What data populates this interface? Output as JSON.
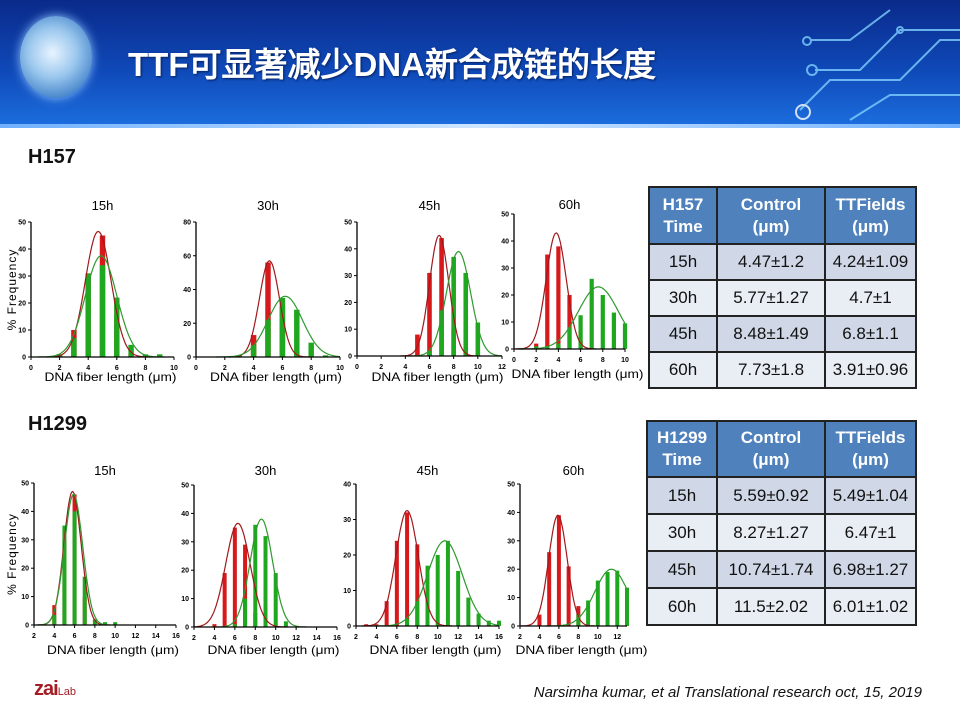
{
  "header": {
    "title": "TTF可显著减少DNA新合成链的长度"
  },
  "sections": [
    {
      "label": "H157",
      "table": {
        "headers": [
          "H157\nTime",
          "Control\n(μm)",
          "TTFields\n(μm)"
        ],
        "rows": [
          [
            "15h",
            "4.47±1.2",
            "4.24±1.09"
          ],
          [
            "30h",
            "5.77±1.27",
            "4.7±1"
          ],
          [
            "45h",
            "8.48±1.49",
            "6.8±1.1"
          ],
          [
            "60h",
            "7.73±1.8",
            "3.91±0.96"
          ]
        ]
      }
    },
    {
      "label": "H1299",
      "table": {
        "headers": [
          "H1299\nTime",
          "Control\n(μm)",
          "TTFields\n(μm)"
        ],
        "rows": [
          [
            "15h",
            "5.59±0.92",
            "5.49±1.04"
          ],
          [
            "30h",
            "8.27±1.27",
            "6.47±1"
          ],
          [
            "45h",
            "10.74±1.74",
            "6.98±1.27"
          ],
          [
            "60h",
            "11.5±2.02",
            "6.01±1.02"
          ]
        ]
      }
    }
  ],
  "colors": {
    "red": "#d7191c",
    "green": "#1fa81f",
    "red_fit": "#a0191c",
    "green_fit": "#2e9a2e",
    "header_blue": "#4f81bd"
  },
  "chart_data": [
    {
      "type": "bar",
      "group": "H157",
      "title": "15h",
      "xlabel": "DNA fiber length (μm)",
      "ylabel": "% Frequency",
      "xlim": [
        0,
        10
      ],
      "ylim": [
        0,
        50
      ],
      "xticks": [
        0,
        2,
        4,
        6,
        8,
        10
      ],
      "yticks": [
        0,
        10,
        20,
        30,
        40,
        50
      ],
      "series": [
        {
          "name": "red",
          "x": [
            2,
            3,
            4,
            5,
            6,
            7
          ],
          "values": [
            0.5,
            10,
            30,
            45,
            15,
            1
          ],
          "fit": {
            "mean": 4.7,
            "sd": 0.9,
            "peak": 46.5
          }
        },
        {
          "name": "green",
          "x": [
            2,
            3,
            4,
            5,
            6,
            7,
            8,
            9
          ],
          "values": [
            1,
            7,
            31,
            34,
            22,
            4.5,
            1,
            1
          ],
          "fit": {
            "mean": 4.9,
            "sd": 1.1,
            "peak": 37.5
          }
        }
      ]
    },
    {
      "type": "bar",
      "group": "H157",
      "title": "30h",
      "xlabel": "DNA fiber length (μm)",
      "ylabel": "",
      "xlim": [
        0,
        10
      ],
      "ylim": [
        0,
        80
      ],
      "xticks": [
        0,
        2,
        4,
        6,
        8,
        10
      ],
      "yticks": [
        0,
        20,
        40,
        60,
        80
      ],
      "series": [
        {
          "name": "red",
          "x": [
            4,
            5,
            6,
            7
          ],
          "values": [
            13,
            56,
            30,
            2
          ],
          "fit": {
            "mean": 5.1,
            "sd": 0.7,
            "peak": 57
          }
        },
        {
          "name": "green",
          "x": [
            3,
            4,
            5,
            6,
            7,
            8,
            9
          ],
          "values": [
            1,
            7,
            22,
            35,
            28,
            8.5,
            1
          ],
          "fit": {
            "mean": 6.2,
            "sd": 1.2,
            "peak": 36
          }
        }
      ]
    },
    {
      "type": "bar",
      "group": "H157",
      "title": "45h",
      "xlabel": "DNA fiber length (μm)",
      "ylabel": "",
      "xlim": [
        0,
        12
      ],
      "ylim": [
        0,
        50
      ],
      "xticks": [
        0,
        2,
        4,
        6,
        8,
        10,
        12
      ],
      "yticks": [
        0,
        10,
        20,
        30,
        40,
        50
      ],
      "series": [
        {
          "name": "red",
          "x": [
            5,
            6,
            7,
            8
          ],
          "values": [
            8,
            31,
            44,
            10
          ],
          "fit": {
            "mean": 6.8,
            "sd": 0.8,
            "peak": 45
          }
        },
        {
          "name": "green",
          "x": [
            6,
            7,
            8,
            9,
            10
          ],
          "values": [
            2,
            17,
            37,
            31,
            12.5
          ],
          "fit": {
            "mean": 8.4,
            "sd": 1.0,
            "peak": 39
          }
        }
      ]
    },
    {
      "type": "bar",
      "group": "H157",
      "title": "60h",
      "xlabel": "DNA fiber length (μm)",
      "ylabel": "",
      "xlim": [
        0,
        10
      ],
      "ylim": [
        0,
        50
      ],
      "xticks": [
        0,
        2,
        4,
        6,
        8,
        10
      ],
      "yticks": [
        0,
        10,
        20,
        30,
        40,
        50
      ],
      "series": [
        {
          "name": "red",
          "x": [
            2,
            3,
            4,
            5,
            6
          ],
          "values": [
            2,
            35,
            38,
            20,
            3
          ],
          "fit": {
            "mean": 3.8,
            "sd": 0.9,
            "peak": 43
          }
        },
        {
          "name": "green",
          "x": [
            2,
            3,
            4,
            5,
            6,
            7,
            8,
            9,
            10
          ],
          "values": [
            1,
            1,
            2,
            8,
            12.5,
            26,
            20,
            13.5,
            9.5
          ],
          "fit": {
            "mean": 7.6,
            "sd": 1.8,
            "peak": 23
          }
        }
      ]
    },
    {
      "type": "bar",
      "group": "H1299",
      "title": "15h",
      "xlabel": "DNA fiber length (μm)",
      "ylabel": "% Frequency",
      "xlim": [
        2,
        16
      ],
      "ylim": [
        0,
        50
      ],
      "xticks": [
        2,
        4,
        6,
        8,
        10,
        12,
        14,
        16
      ],
      "yticks": [
        0,
        10,
        20,
        30,
        40,
        50
      ],
      "series": [
        {
          "name": "red",
          "x": [
            4,
            5,
            6,
            7
          ],
          "values": [
            7,
            30,
            46,
            10
          ],
          "fit": {
            "mean": 5.8,
            "sd": 0.85,
            "peak": 47
          }
        },
        {
          "name": "green",
          "x": [
            4,
            5,
            6,
            7,
            8,
            9,
            10
          ],
          "values": [
            3.5,
            35,
            40,
            17,
            2,
            1,
            1
          ],
          "fit": {
            "mean": 5.9,
            "sd": 0.9,
            "peak": 46
          }
        }
      ]
    },
    {
      "type": "bar",
      "group": "H1299",
      "title": "30h",
      "xlabel": "DNA fiber length (μm)",
      "ylabel": "",
      "xlim": [
        2,
        16
      ],
      "ylim": [
        0,
        50
      ],
      "xticks": [
        2,
        4,
        6,
        8,
        10,
        12,
        14,
        16
      ],
      "yticks": [
        0,
        10,
        20,
        30,
        40,
        50
      ],
      "series": [
        {
          "name": "red",
          "x": [
            4,
            5,
            6,
            7,
            8
          ],
          "values": [
            1,
            19,
            35,
            29,
            5
          ],
          "fit": {
            "mean": 6.3,
            "sd": 1.2,
            "peak": 36.5
          }
        },
        {
          "name": "green",
          "x": [
            6,
            7,
            8,
            9,
            10,
            11
          ],
          "values": [
            1,
            10,
            36,
            32,
            19,
            2
          ],
          "fit": {
            "mean": 8.6,
            "sd": 1.1,
            "peak": 38
          }
        }
      ]
    },
    {
      "type": "bar",
      "group": "H1299",
      "title": "45h",
      "xlabel": "DNA fiber length (μm)",
      "ylabel": "",
      "xlim": [
        2,
        16
      ],
      "ylim": [
        0,
        40
      ],
      "xticks": [
        2,
        4,
        6,
        8,
        10,
        12,
        14,
        16
      ],
      "yticks": [
        0,
        10,
        20,
        30,
        40
      ],
      "series": [
        {
          "name": "red",
          "x": [
            3,
            4,
            5,
            6,
            7,
            8,
            9
          ],
          "values": [
            0.5,
            0.5,
            7,
            24,
            32,
            23,
            5
          ],
          "fit": {
            "mean": 7.0,
            "sd": 1.1,
            "peak": 32.5
          }
        },
        {
          "name": "green",
          "x": [
            7,
            8,
            9,
            10,
            11,
            12,
            13,
            14,
            15,
            16
          ],
          "values": [
            2,
            7,
            17,
            20,
            24,
            15.5,
            8,
            3.5,
            1.5,
            1.5
          ],
          "fit": {
            "mean": 10.7,
            "sd": 1.7,
            "peak": 24
          }
        }
      ]
    },
    {
      "type": "bar",
      "group": "H1299",
      "title": "60h",
      "xlabel": "DNA fiber length (μm)",
      "ylabel": "",
      "xlim": [
        2,
        13
      ],
      "ylim": [
        0,
        50
      ],
      "xticks": [
        2,
        4,
        6,
        8,
        10,
        12
      ],
      "yticks": [
        0,
        10,
        20,
        30,
        40,
        50
      ],
      "series": [
        {
          "name": "red",
          "x": [
            4,
            5,
            6,
            7,
            8
          ],
          "values": [
            4,
            26,
            39,
            21,
            7
          ],
          "fit": {
            "mean": 5.9,
            "sd": 0.95,
            "peak": 39
          }
        },
        {
          "name": "green",
          "x": [
            8,
            9,
            10,
            11,
            12,
            13
          ],
          "values": [
            4,
            9,
            16,
            19,
            19.5,
            13.5
          ],
          "fit": {
            "mean": 11.4,
            "sd": 1.7,
            "peak": 20
          }
        }
      ]
    }
  ],
  "footer": {
    "logo": "zai",
    "logo_sub": "Lab",
    "citation": "Narsimha kumar, et al Translational research oct, 15, 2019"
  }
}
